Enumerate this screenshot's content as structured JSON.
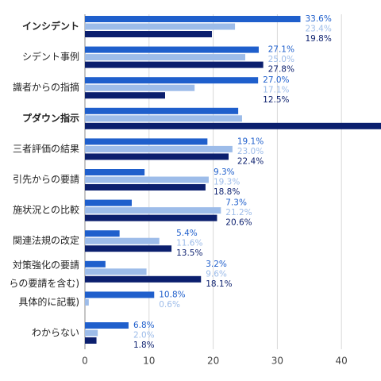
{
  "chart_data": {
    "type": "hbar",
    "categories": [
      "インシデント",
      "シデント事例",
      "識者からの指摘",
      "プダウン指示",
      "三者評価の結果",
      "引先からの要請",
      "施状況との比較",
      "関連法規の改定",
      [
        "対策強化の要請",
        "らの要請を含む)"
      ],
      "具体的に記載)",
      "わからない"
    ],
    "highlight_color": "#cc1f1f",
    "highlight": [
      0,
      3
    ],
    "series": [
      {
        "color": "#1f5fcc",
        "values": [
          33.6,
          27.1,
          27.0,
          23.9,
          19.1,
          9.3,
          7.3,
          5.4,
          3.2,
          10.8,
          6.8
        ],
        "value_labels": [
          "33.6%",
          "27.1%",
          "27.0%",
          null,
          "19.1%",
          "9.3%",
          "7.3%",
          "5.4%",
          "3.2%",
          "10.8%",
          "6.8%"
        ]
      },
      {
        "color": "#9dbce9",
        "values": [
          23.4,
          25.0,
          17.1,
          24.5,
          23.0,
          19.3,
          21.2,
          11.6,
          9.6,
          0.6,
          2.0
        ],
        "value_labels": [
          "23.4%",
          "25.0%",
          "17.1%",
          null,
          "23.0%",
          "19.3%",
          "21.2%",
          "11.6%",
          "9.6%",
          "0.6%",
          "2.0%"
        ]
      },
      {
        "color": "#0b1f6e",
        "values": [
          19.8,
          27.8,
          12.5,
          48,
          22.4,
          18.8,
          20.6,
          13.5,
          18.1,
          null,
          1.8
        ],
        "value_labels": [
          "19.8%",
          "27.8%",
          "12.5%",
          null,
          "22.4%",
          "18.8%",
          "20.6%",
          "13.5%",
          "18.1%",
          null,
          "1.8%"
        ]
      }
    ],
    "xlim": [
      0,
      46.2
    ],
    "xticks": [
      0,
      10,
      20,
      30,
      40
    ],
    "grid": true
  }
}
